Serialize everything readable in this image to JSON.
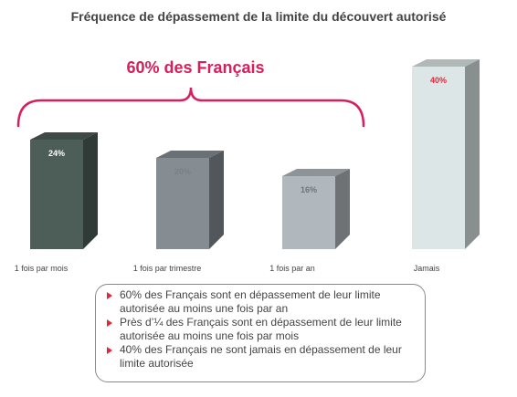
{
  "chart_data": {
    "type": "bar",
    "title": "Fréquence de dépassement de la limite du découvert autorisé",
    "categories": [
      "1 fois par mois",
      "1 fois par trimestre",
      "1 fois par an",
      "Jamais"
    ],
    "values": [
      24,
      20,
      16,
      40
    ],
    "value_labels": [
      "24%",
      "20%",
      "16%",
      "40%"
    ],
    "colors": [
      "#4d5d58",
      "#858d93",
      "#b1b8bd",
      "#dde6e6"
    ],
    "label_colors": [
      "#ffffff",
      "#7a7f84",
      "#6e7478",
      "#e3263a"
    ],
    "ylim": [
      0,
      40
    ],
    "grid": false,
    "legend": "none",
    "annotation": {
      "text": "60% des Français",
      "color": "#d81e5b",
      "spans_categories": [
        0,
        1,
        2
      ]
    }
  },
  "summary": {
    "items": [
      "60% des Français sont en dépassement de leur limite autorisée au moins une fois par an",
      "Près d’¼ des Français sont en dépassement de leur limite autorisée au moins une fois par mois",
      "40% des Français ne sont jamais en dépassement de leur limite autorisée"
    ]
  }
}
